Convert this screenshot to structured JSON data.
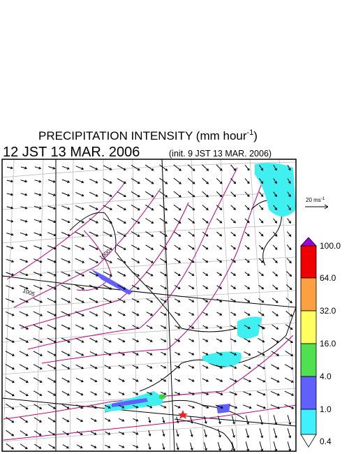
{
  "header": {
    "title": "PRECIPITATION INTENSITY (mm hour",
    "title_sup": "-1",
    "title_end": ")",
    "time": "12 JST 13 MAR. 2006",
    "init": "(init. 9 JST 13 MAR. 2006)"
  },
  "vector_scale": {
    "label": "20 ms",
    "sup": "-1"
  },
  "contour_labels": [
    "1005",
    "1000"
  ],
  "colorbar": {
    "labels": [
      "100.0",
      "64.0",
      "32.0",
      "16.0",
      "4.0",
      "1.0",
      "0.4"
    ]
  }
}
